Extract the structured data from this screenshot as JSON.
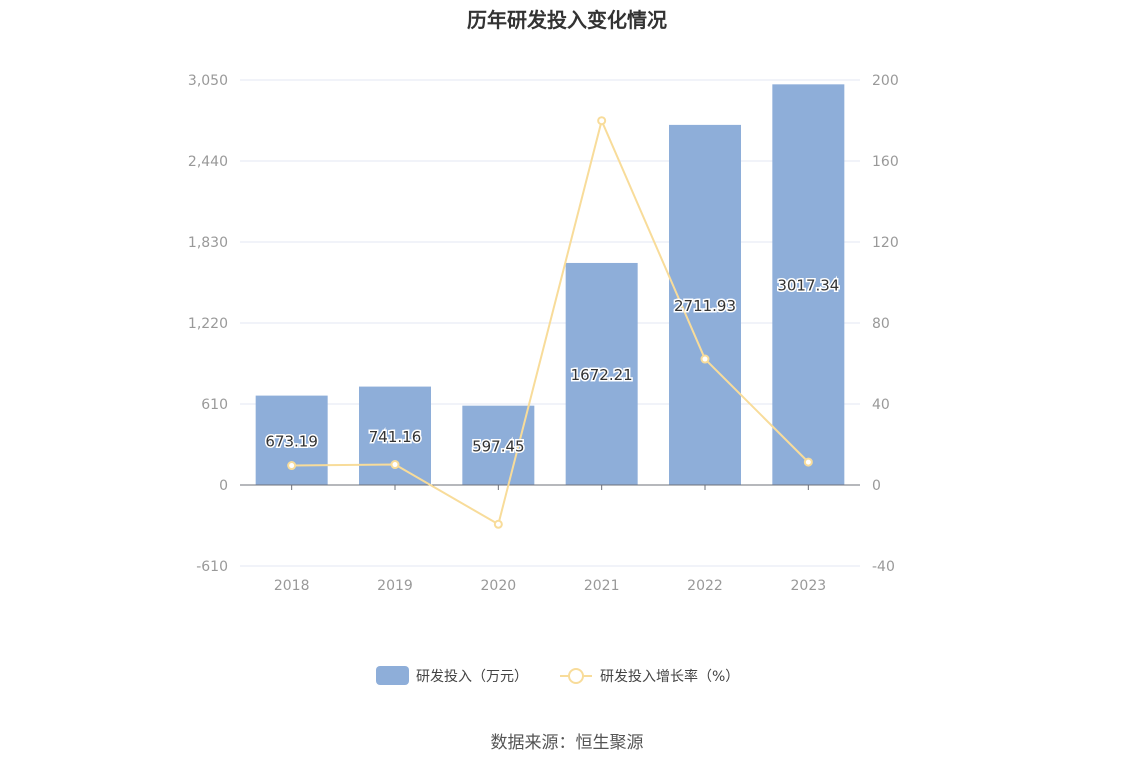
{
  "chart_data": {
    "type": "bar",
    "title": "历年研发投入变化情况",
    "categories": [
      "2018",
      "2019",
      "2020",
      "2021",
      "2022",
      "2023"
    ],
    "series": [
      {
        "name": "研发投入（万元）",
        "type": "bar",
        "axis": "left",
        "color": "#8eaed9",
        "values": [
          673.19,
          741.16,
          597.45,
          1672.21,
          2711.93,
          3017.34
        ],
        "labels": [
          "673.19",
          "741.16",
          "597.45",
          "1672.21",
          "2711.93",
          "3017.34"
        ]
      },
      {
        "name": "研发投入增长率（%）",
        "type": "line",
        "axis": "right",
        "color": "#f8dc9a",
        "values": [
          9.6,
          10.1,
          -19.4,
          179.9,
          62.2,
          11.3
        ]
      }
    ],
    "y_left": {
      "ylim": [
        -610,
        3050
      ],
      "ticks": [
        "3,050",
        "2,440",
        "1,830",
        "1,220",
        "610",
        "0",
        "-610"
      ],
      "tick_values": [
        3050,
        2440,
        1830,
        1220,
        610,
        0,
        -610
      ]
    },
    "y_right": {
      "ylim": [
        -40,
        200
      ],
      "ticks": [
        "200",
        "160",
        "120",
        "80",
        "40",
        "0",
        "-40"
      ],
      "tick_values": [
        200,
        160,
        120,
        80,
        40,
        0,
        -40
      ]
    },
    "grid": true,
    "legend_position": "bottom"
  },
  "source": "数据来源：恒生聚源"
}
